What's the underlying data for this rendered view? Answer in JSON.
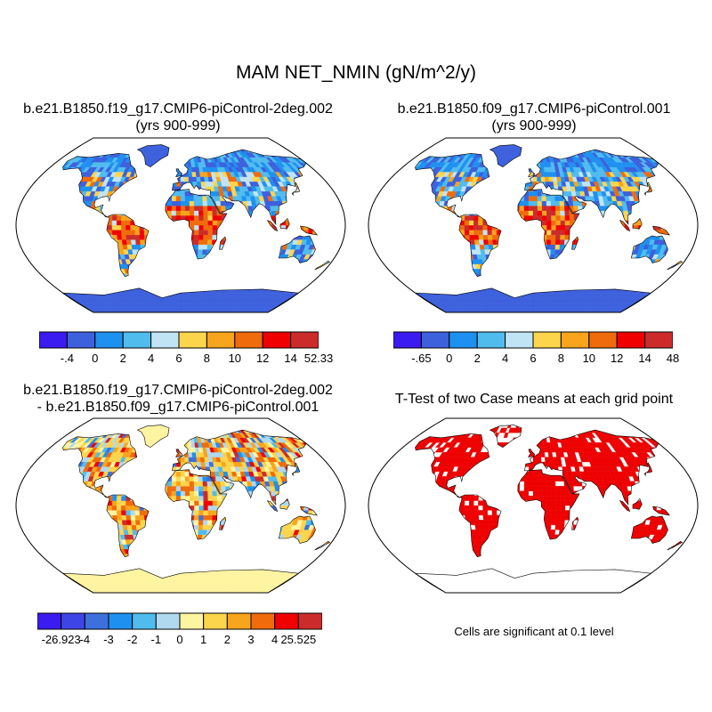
{
  "title": "MAM NET_NMIN (gN/m^2/y)",
  "panels": {
    "case1": {
      "title_line1": "b.e21.B1850.f19_g17.CMIP6-piControl-2deg.002",
      "title_line2": "(yrs 900-999)"
    },
    "case2": {
      "title_line1": "b.e21.B1850.f09_g17.CMIP6-piControl.001",
      "title_line2": "(yrs 900-999)"
    },
    "diff": {
      "title_line1": "b.e21.B1850.f19_g17.CMIP6-piControl-2deg.002",
      "title_line2": "- b.e21.B1850.f09_g17.CMIP6-piControl.001"
    },
    "ttest": {
      "title_line1": "T-Test of two Case means at each grid point",
      "note": "Cells are significant at 0.1 level"
    }
  },
  "colorbars": {
    "case1": {
      "colors": [
        "#3a1cf0",
        "#3d60dd",
        "#1e90f0",
        "#50bcee",
        "#c0e4f4",
        "#fdd54c",
        "#f8a41c",
        "#f06b0c",
        "#f00000",
        "#cc2b2b"
      ],
      "labels": [
        "-.4",
        "0",
        "2",
        "4",
        "6",
        "8",
        "10",
        "12",
        "14",
        "52.33"
      ]
    },
    "case2": {
      "colors": [
        "#3a1cf0",
        "#3d60dd",
        "#1e90f0",
        "#50bcee",
        "#c0e4f4",
        "#fdd54c",
        "#f8a41c",
        "#f06b0c",
        "#f00000",
        "#cc2b2b"
      ],
      "labels": [
        "-.65",
        "0",
        "2",
        "4",
        "6",
        "8",
        "10",
        "12",
        "14",
        "48"
      ]
    },
    "diff": {
      "colors": [
        "#3a1cf0",
        "#3d45e6",
        "#3d70dd",
        "#1e90f0",
        "#50bcee",
        "#b0d8ee",
        "#fff4a0",
        "#fdd54c",
        "#f8a41c",
        "#f06b0c",
        "#f00000",
        "#cc2b2b"
      ],
      "labels": [
        "-26.923",
        "-4",
        "-3",
        "-2",
        "-1",
        "0",
        "1",
        "2",
        "3",
        "4",
        "25.525"
      ]
    }
  },
  "map_colors": {
    "ocean": "#ffffff",
    "outline": "#000000",
    "significant": "#ee0000"
  }
}
